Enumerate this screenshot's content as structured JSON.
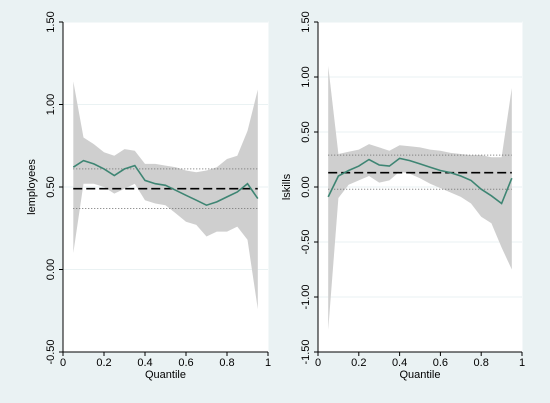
{
  "chart_data": [
    {
      "type": "line",
      "title": "",
      "xlabel": "Quantile",
      "ylabel": "lemployees",
      "xlim": [
        0,
        1
      ],
      "ylim": [
        -0.5,
        1.5
      ],
      "x_ticks": [
        0,
        0.2,
        0.4,
        0.6,
        0.8,
        1
      ],
      "x_tick_labels": [
        "0",
        "0.2",
        "0.4",
        "0.6",
        "0.8",
        "1"
      ],
      "y_ticks": [
        -0.5,
        0,
        0.5,
        1,
        1.5
      ],
      "y_tick_labels": [
        "-0.50",
        "0.00",
        "0.50",
        "1.00",
        "1.50"
      ],
      "grid": "horizontal",
      "quantile_estimate": {
        "x": [
          0.05,
          0.1,
          0.15,
          0.2,
          0.25,
          0.3,
          0.35,
          0.4,
          0.45,
          0.5,
          0.55,
          0.6,
          0.65,
          0.7,
          0.75,
          0.8,
          0.85,
          0.9,
          0.95
        ],
        "y": [
          0.62,
          0.66,
          0.64,
          0.61,
          0.57,
          0.61,
          0.63,
          0.54,
          0.52,
          0.51,
          0.48,
          0.45,
          0.42,
          0.39,
          0.41,
          0.44,
          0.47,
          0.52,
          0.43
        ]
      },
      "confidence_band": {
        "x": [
          0.05,
          0.1,
          0.15,
          0.2,
          0.25,
          0.3,
          0.35,
          0.4,
          0.45,
          0.5,
          0.55,
          0.6,
          0.65,
          0.7,
          0.75,
          0.8,
          0.85,
          0.9,
          0.95
        ],
        "upper": [
          1.14,
          0.8,
          0.76,
          0.71,
          0.69,
          0.73,
          0.72,
          0.64,
          0.64,
          0.63,
          0.62,
          0.6,
          0.59,
          0.6,
          0.62,
          0.67,
          0.69,
          0.84,
          1.09
        ],
        "lower": [
          0.1,
          0.52,
          0.52,
          0.5,
          0.46,
          0.49,
          0.52,
          0.42,
          0.4,
          0.39,
          0.34,
          0.29,
          0.27,
          0.2,
          0.23,
          0.23,
          0.26,
          0.18,
          -0.24
        ]
      },
      "ols_estimate": 0.49,
      "ols_ci": [
        0.37,
        0.61
      ],
      "colors": {
        "line": "#3e8573",
        "band": "#cfcfcf",
        "ols": "#000000",
        "ols_ci": "#707070",
        "grid": "#eaf2f3"
      }
    },
    {
      "type": "line",
      "title": "",
      "xlabel": "Quantile",
      "ylabel": "lskills",
      "xlim": [
        0,
        1
      ],
      "ylim": [
        -1.5,
        1.5
      ],
      "x_ticks": [
        0,
        0.2,
        0.4,
        0.6,
        0.8,
        1
      ],
      "x_tick_labels": [
        "0",
        "0.2",
        "0.4",
        "0.6",
        "0.8",
        "1"
      ],
      "y_ticks": [
        -1.5,
        -1,
        -0.5,
        0,
        0.5,
        1,
        1.5
      ],
      "y_tick_labels": [
        "-1.50",
        "-1.00",
        "-0.50",
        "0.00",
        "0.50",
        "1.00",
        "1.50"
      ],
      "grid": "horizontal",
      "quantile_estimate": {
        "x": [
          0.05,
          0.1,
          0.15,
          0.2,
          0.25,
          0.3,
          0.35,
          0.4,
          0.45,
          0.5,
          0.55,
          0.6,
          0.65,
          0.7,
          0.75,
          0.8,
          0.85,
          0.9,
          0.95
        ],
        "y": [
          -0.09,
          0.1,
          0.15,
          0.19,
          0.25,
          0.2,
          0.19,
          0.26,
          0.24,
          0.21,
          0.18,
          0.15,
          0.13,
          0.1,
          0.06,
          -0.02,
          -0.08,
          -0.15,
          0.08
        ]
      },
      "confidence_band": {
        "x": [
          0.05,
          0.1,
          0.15,
          0.2,
          0.25,
          0.3,
          0.35,
          0.4,
          0.45,
          0.5,
          0.55,
          0.6,
          0.65,
          0.7,
          0.75,
          0.8,
          0.85,
          0.9,
          0.95
        ],
        "upper": [
          1.1,
          0.3,
          0.32,
          0.34,
          0.39,
          0.36,
          0.33,
          0.38,
          0.37,
          0.36,
          0.34,
          0.33,
          0.31,
          0.3,
          0.29,
          0.29,
          0.27,
          0.27,
          0.9
        ],
        "lower": [
          -1.3,
          -0.1,
          0.02,
          0.06,
          0.1,
          0.04,
          0.06,
          0.14,
          0.12,
          0.08,
          0.03,
          -0.01,
          -0.05,
          -0.09,
          -0.15,
          -0.27,
          -0.33,
          -0.55,
          -0.75
        ]
      },
      "ols_estimate": 0.13,
      "ols_ci": [
        -0.02,
        0.29
      ],
      "colors": {
        "line": "#3e8573",
        "band": "#cfcfcf",
        "ols": "#000000",
        "ols_ci": "#707070",
        "grid": "#eaf2f3"
      }
    }
  ]
}
